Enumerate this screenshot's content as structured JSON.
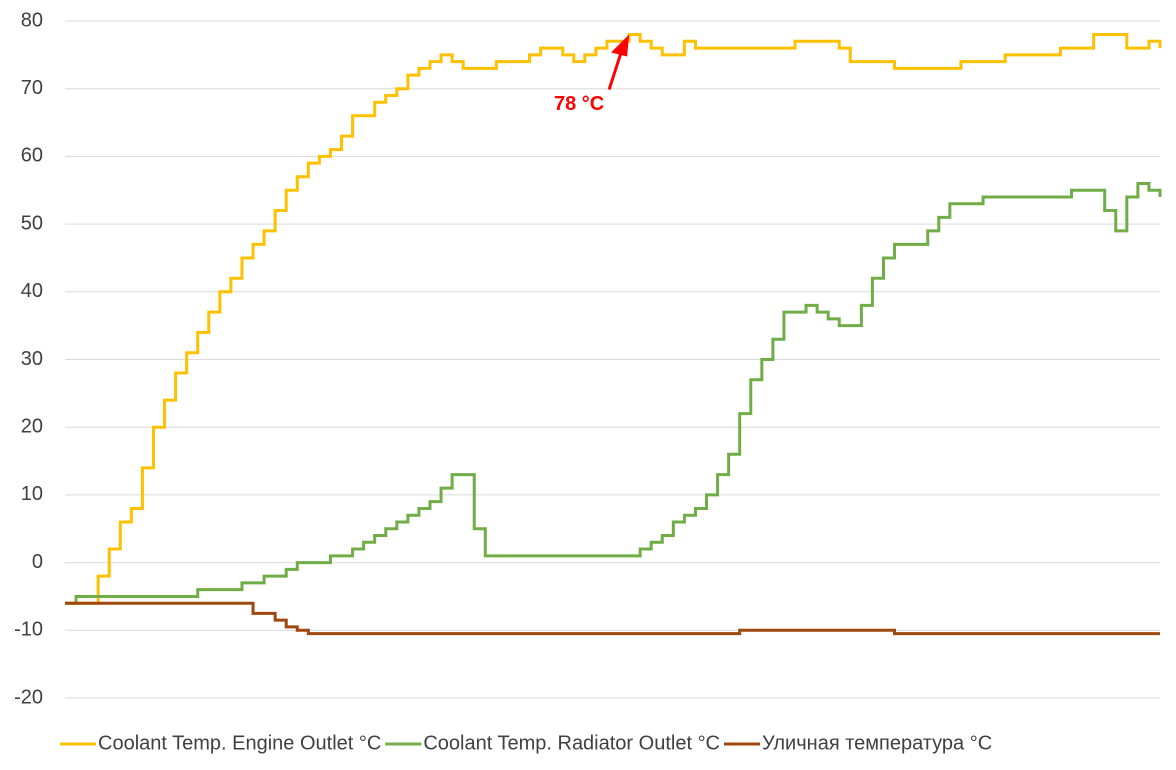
{
  "chart_data": {
    "type": "line",
    "ylim": [
      -20,
      80
    ],
    "yticks": [
      -20,
      -10,
      0,
      10,
      20,
      30,
      40,
      50,
      60,
      70,
      80
    ],
    "grid": true,
    "legend": "bottom",
    "annotations": [
      {
        "text": "78  °C",
        "color": "#ff0000"
      }
    ],
    "series": [
      {
        "name": "Coolant Temp. Engine Outlet °C",
        "color": "#ffc000",
        "values": [
          -6,
          -6,
          -6,
          -2,
          2,
          6,
          8,
          14,
          20,
          24,
          28,
          31,
          34,
          37,
          40,
          42,
          45,
          47,
          49,
          52,
          55,
          57,
          59,
          60,
          61,
          63,
          66,
          66,
          68,
          69,
          70,
          72,
          73,
          74,
          75,
          74,
          73,
          73,
          73,
          74,
          74,
          74,
          75,
          76,
          76,
          75,
          74,
          75,
          76,
          77,
          77,
          78,
          77,
          76,
          75,
          75,
          77,
          76,
          76,
          76,
          76,
          76,
          76,
          76,
          76,
          76,
          77,
          77,
          77,
          77,
          76,
          74,
          74,
          74,
          74,
          73,
          73,
          73,
          73,
          73,
          73,
          74,
          74,
          74,
          74,
          75,
          75,
          75,
          75,
          75,
          76,
          76,
          76,
          78,
          78,
          78,
          76,
          76,
          77,
          76
        ]
      },
      {
        "name": "Coolant Temp. Radiator Outlet °C",
        "color": "#70ad47",
        "values": [
          -6,
          -5,
          -5,
          -5,
          -5,
          -5,
          -5,
          -5,
          -5,
          -5,
          -5,
          -5,
          -4,
          -4,
          -4,
          -4,
          -3,
          -3,
          -2,
          -2,
          -1,
          0,
          0,
          0,
          1,
          1,
          2,
          3,
          4,
          5,
          6,
          7,
          8,
          9,
          11,
          13,
          13,
          5,
          1,
          1,
          1,
          1,
          1,
          1,
          1,
          1,
          1,
          1,
          1,
          1,
          1,
          1,
          2,
          3,
          4,
          6,
          7,
          8,
          10,
          13,
          16,
          22,
          27,
          30,
          33,
          37,
          37,
          38,
          37,
          36,
          35,
          35,
          38,
          42,
          45,
          47,
          47,
          47,
          49,
          51,
          53,
          53,
          53,
          54,
          54,
          54,
          54,
          54,
          54,
          54,
          54,
          55,
          55,
          55,
          52,
          49,
          54,
          56,
          55,
          54
        ]
      },
      {
        "name": "Уличная температура °C",
        "color": "#9e480e",
        "values": [
          -6,
          -6,
          -6,
          -6,
          -6,
          -6,
          -6,
          -6,
          -6,
          -6,
          -6,
          -6,
          -6,
          -6,
          -6,
          -6,
          -6,
          -7.5,
          -7.5,
          -8.5,
          -9.5,
          -10,
          -10.5,
          -10.5,
          -10.5,
          -10.5,
          -10.5,
          -10.5,
          -10.5,
          -10.5,
          -10.5,
          -10.5,
          -10.5,
          -10.5,
          -10.5,
          -10.5,
          -10.5,
          -10.5,
          -10.5,
          -10.5,
          -10.5,
          -10.5,
          -10.5,
          -10.5,
          -10.5,
          -10.5,
          -10.5,
          -10.5,
          -10.5,
          -10.5,
          -10.5,
          -10.5,
          -10.5,
          -10.5,
          -10.5,
          -10.5,
          -10.5,
          -10.5,
          -10.5,
          -10.5,
          -10.5,
          -10,
          -10,
          -10,
          -10,
          -10,
          -10,
          -10,
          -10,
          -10,
          -10,
          -10,
          -10,
          -10,
          -10,
          -10.5,
          -10.5,
          -10.5,
          -10.5,
          -10.5,
          -10.5,
          -10.5,
          -10.5,
          -10.5,
          -10.5,
          -10.5,
          -10.5,
          -10.5,
          -10.5,
          -10.5,
          -10.5,
          -10.5,
          -10.5,
          -10.5,
          -10.5,
          -10.5,
          -10.5,
          -10.5,
          -10.5,
          -10.5
        ]
      }
    ]
  }
}
